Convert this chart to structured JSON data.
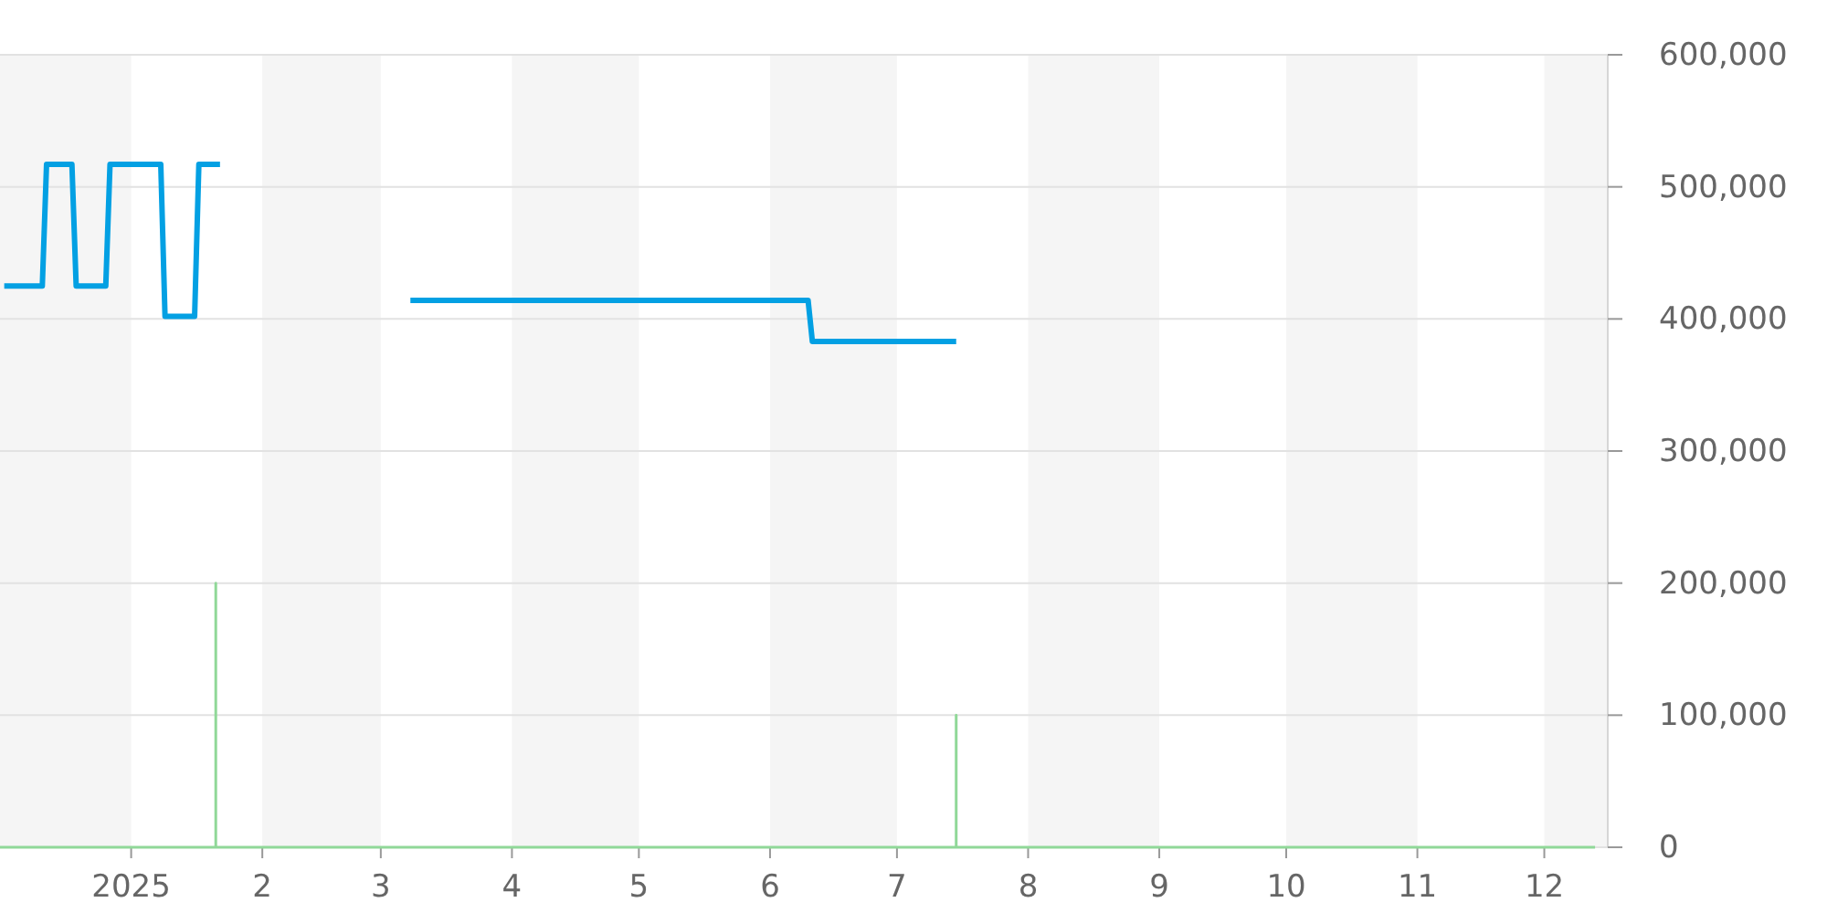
{
  "chart_data": {
    "type": "line",
    "xlim": [
      "2024-12-01",
      "2025-12-16"
    ],
    "xticks": [
      {
        "value": "2025-01-01",
        "label": "2025"
      },
      {
        "value": "2025-02-01",
        "label": "2"
      },
      {
        "value": "2025-03-01",
        "label": "3"
      },
      {
        "value": "2025-04-01",
        "label": "4"
      },
      {
        "value": "2025-05-01",
        "label": "5"
      },
      {
        "value": "2025-06-01",
        "label": "6"
      },
      {
        "value": "2025-07-01",
        "label": "7"
      },
      {
        "value": "2025-08-01",
        "label": "8"
      },
      {
        "value": "2025-09-01",
        "label": "9"
      },
      {
        "value": "2025-10-01",
        "label": "10"
      },
      {
        "value": "2025-11-01",
        "label": "11"
      },
      {
        "value": "2025-12-01",
        "label": "12"
      }
    ],
    "ylim": [
      0,
      600000
    ],
    "yticks": [
      0,
      {
        "value": 100000,
        "label": "100,000"
      },
      {
        "value": 200000,
        "label": "200,000"
      },
      {
        "value": 300000,
        "label": "300,000"
      },
      {
        "value": 400000,
        "label": "400,000"
      },
      {
        "value": 500000,
        "label": "500,000"
      },
      {
        "value": 600000,
        "label": "600,000"
      }
    ],
    "grid": "y",
    "bands": [
      {
        "axis": "x",
        "from": "2024-12-01",
        "to": "2025-01-01",
        "color": "#f5f5f5"
      },
      {
        "axis": "x",
        "from": "2025-02-01",
        "to": "2025-03-01",
        "color": "#f5f5f5"
      },
      {
        "axis": "x",
        "from": "2025-04-01",
        "to": "2025-05-01",
        "color": "#f5f5f5"
      },
      {
        "axis": "x",
        "from": "2025-06-01",
        "to": "2025-07-01",
        "color": "#f5f5f5"
      },
      {
        "axis": "x",
        "from": "2025-08-01",
        "to": "2025-09-01",
        "color": "#f5f5f5"
      },
      {
        "axis": "x",
        "from": "2025-10-01",
        "to": "2025-11-01",
        "color": "#f5f5f5"
      },
      {
        "axis": "x",
        "from": "2025-12-01",
        "to": "2025-12-16",
        "color": "#f5f5f5"
      }
    ],
    "series": [
      {
        "color": "#90d898",
        "x": [
          "2024-12-01",
          "2025-01-21",
          "2025-01-21",
          "2025-01-21",
          "2025-07-15",
          "2025-07-15",
          "2025-07-15",
          "2025-12-13"
        ],
        "values": [
          0,
          0,
          200000,
          0,
          0,
          100000,
          0,
          0
        ]
      },
      {
        "color": "#03a0e3",
        "x": [
          "2024-12-02",
          "2024-12-11",
          "2024-12-12",
          "2024-12-18",
          "2024-12-19",
          "2024-12-26",
          "2024-12-27",
          "2025-01-08",
          "2025-01-09",
          "2025-01-16",
          "2025-01-17",
          "2025-01-22",
          "2025-02-15",
          "2025-03-08",
          "2025-06-10",
          "2025-06-11",
          "2025-07-15"
        ],
        "values": [
          425000,
          425000,
          517000,
          517000,
          425000,
          425000,
          517000,
          517000,
          402000,
          402000,
          517000,
          517000,
          null,
          414000,
          414000,
          383000,
          383000
        ]
      }
    ]
  }
}
